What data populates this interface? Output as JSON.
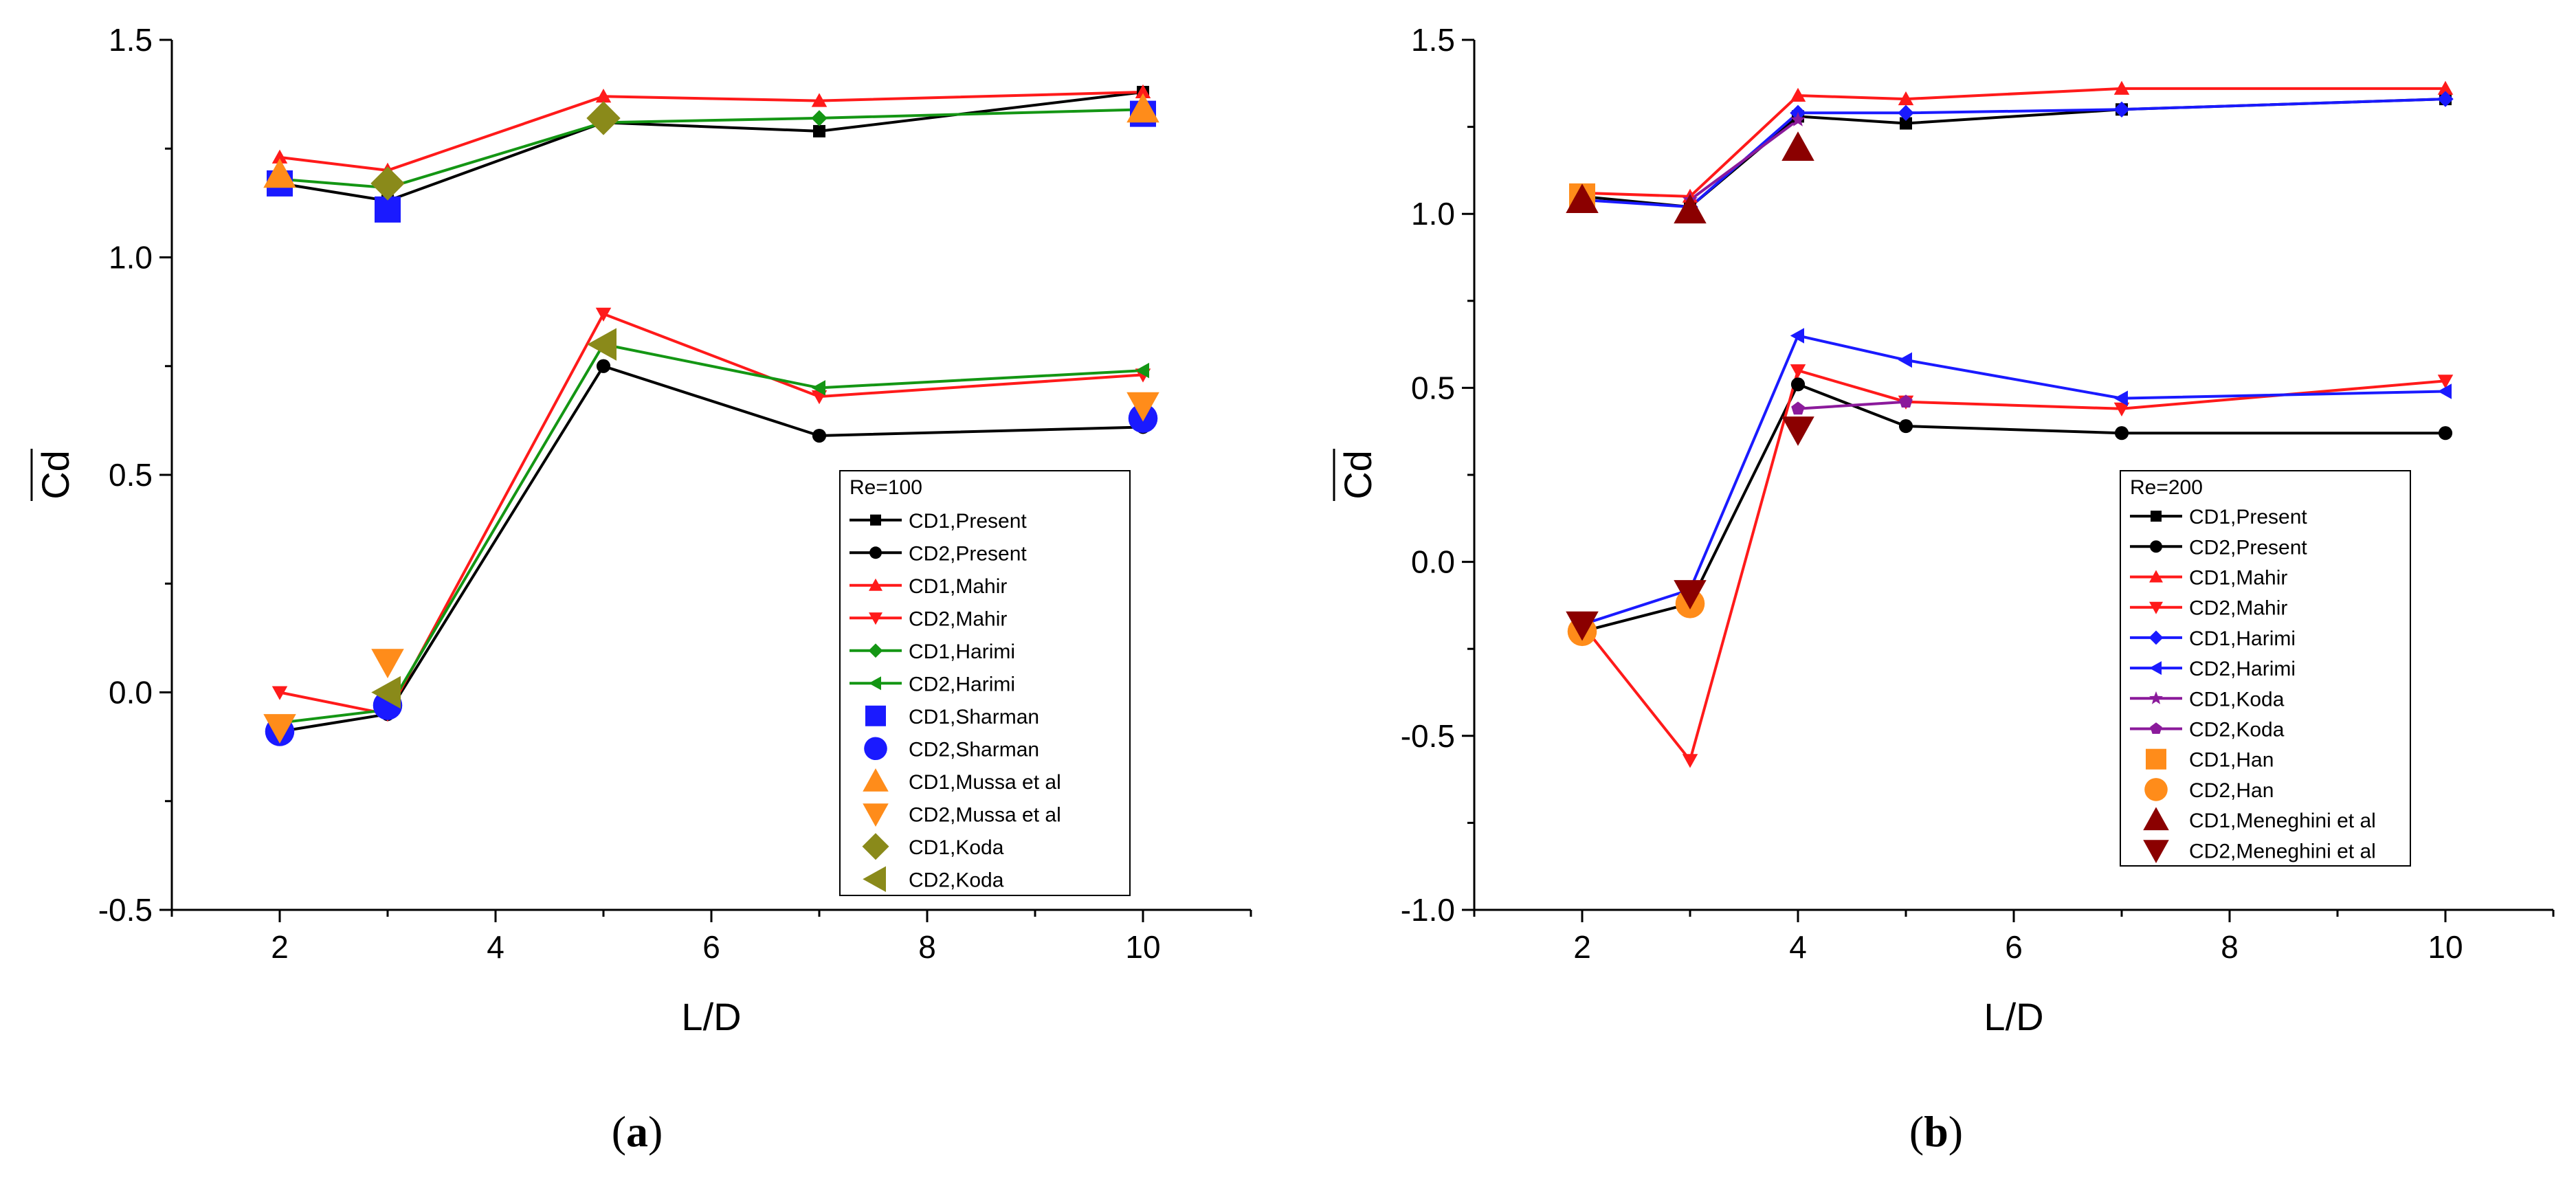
{
  "chart_data": [
    {
      "type": "line",
      "panel_label": "a",
      "xlabel": "L/D",
      "ylabel": "Cd",
      "xlim": [
        1,
        11
      ],
      "ylim": [
        -0.5,
        1.5
      ],
      "xticks": [
        2,
        4,
        6,
        8,
        10
      ],
      "yticks": [
        -0.5,
        0.0,
        0.5,
        1.0,
        1.5
      ],
      "ytick_labels": [
        "-0.5",
        "0.0",
        "0.5",
        "1.0",
        "1.5"
      ],
      "grid": false,
      "legend": {
        "title": "Re=100",
        "placement": "lower-right"
      },
      "series": [
        {
          "name": "CD1,Present",
          "color": "#000000",
          "marker": "square",
          "line": true,
          "x": [
            2,
            3,
            5,
            7,
            10
          ],
          "y": [
            1.17,
            1.13,
            1.31,
            1.29,
            1.38
          ]
        },
        {
          "name": "CD2,Present",
          "color": "#000000",
          "marker": "circle",
          "line": true,
          "x": [
            2,
            3,
            5,
            7,
            10
          ],
          "y": [
            -0.09,
            -0.05,
            0.75,
            0.59,
            0.61
          ]
        },
        {
          "name": "CD1,Mahir",
          "color": "#ff1a1a",
          "marker": "triangle-up",
          "line": true,
          "x": [
            2,
            3,
            5,
            7,
            10
          ],
          "y": [
            1.23,
            1.2,
            1.37,
            1.36,
            1.38
          ]
        },
        {
          "name": "CD2,Mahir",
          "color": "#ff1a1a",
          "marker": "triangle-down",
          "line": true,
          "x": [
            2,
            3,
            5,
            7,
            10
          ],
          "y": [
            0.0,
            -0.05,
            0.87,
            0.68,
            0.73
          ]
        },
        {
          "name": "CD1,Harimi",
          "color": "#149614",
          "marker": "diamond",
          "line": true,
          "x": [
            2,
            3,
            5,
            7,
            10
          ],
          "y": [
            1.18,
            1.16,
            1.31,
            1.32,
            1.34
          ]
        },
        {
          "name": "CD2,Harimi",
          "color": "#149614",
          "marker": "triangle-left",
          "line": true,
          "x": [
            2,
            3,
            5,
            7,
            10
          ],
          "y": [
            -0.07,
            -0.04,
            0.8,
            0.7,
            0.74
          ]
        },
        {
          "name": "CD1,Sharman",
          "color": "#1a1aff",
          "marker": "square",
          "line": false,
          "x": [
            2,
            3,
            10
          ],
          "y": [
            1.17,
            1.11,
            1.33
          ]
        },
        {
          "name": "CD2,Sharman",
          "color": "#1a1aff",
          "marker": "circle",
          "line": false,
          "x": [
            2,
            3,
            10
          ],
          "y": [
            -0.09,
            -0.03,
            0.63
          ]
        },
        {
          "name": "CD1,Mussa et al",
          "color": "#ff8c1a",
          "marker": "triangle-up",
          "line": false,
          "x": [
            2,
            10
          ],
          "y": [
            1.19,
            1.34
          ]
        },
        {
          "name": "CD2,Mussa et al",
          "color": "#ff8c1a",
          "marker": "triangle-down",
          "line": false,
          "x": [
            2,
            3,
            10
          ],
          "y": [
            -0.08,
            0.07,
            0.66
          ]
        },
        {
          "name": "CD1,Koda",
          "color": "#8a8a1a",
          "marker": "diamond",
          "line": false,
          "x": [
            3,
            5
          ],
          "y": [
            1.17,
            1.32
          ]
        },
        {
          "name": "CD2,Koda",
          "color": "#8a8a1a",
          "marker": "triangle-left",
          "line": false,
          "x": [
            3,
            5
          ],
          "y": [
            0.0,
            0.8
          ]
        }
      ]
    },
    {
      "type": "line",
      "panel_label": "b",
      "xlabel": "L/D",
      "ylabel": "Cd",
      "xlim": [
        1,
        11
      ],
      "ylim": [
        -1.0,
        1.5
      ],
      "xticks": [
        2,
        4,
        6,
        8,
        10
      ],
      "yticks": [
        -1.0,
        -0.5,
        0.0,
        0.5,
        1.0,
        1.5
      ],
      "ytick_labels": [
        "-1.0",
        "-0.5",
        "0.0",
        "0.5",
        "1.0",
        "1.5"
      ],
      "grid": false,
      "legend": {
        "title": "Re=200",
        "placement": "lower-right"
      },
      "series": [
        {
          "name": "CD1,Present",
          "color": "#000000",
          "marker": "square",
          "line": true,
          "x": [
            2,
            3,
            4,
            5,
            7,
            10
          ],
          "y": [
            1.05,
            1.02,
            1.28,
            1.26,
            1.3,
            1.33
          ]
        },
        {
          "name": "CD2,Present",
          "color": "#000000",
          "marker": "circle",
          "line": true,
          "x": [
            2,
            3,
            4,
            5,
            7,
            10
          ],
          "y": [
            -0.2,
            -0.12,
            0.51,
            0.39,
            0.37,
            0.37
          ]
        },
        {
          "name": "CD1,Mahir",
          "color": "#ff1a1a",
          "marker": "triangle-up",
          "line": true,
          "x": [
            2,
            3,
            4,
            5,
            7,
            10
          ],
          "y": [
            1.06,
            1.05,
            1.34,
            1.33,
            1.36,
            1.36
          ]
        },
        {
          "name": "CD2,Mahir",
          "color": "#ff1a1a",
          "marker": "triangle-down",
          "line": true,
          "x": [
            2,
            3,
            4,
            5,
            7,
            10
          ],
          "y": [
            -0.18,
            -0.57,
            0.55,
            0.46,
            0.44,
            0.52
          ]
        },
        {
          "name": "CD1,Harimi",
          "color": "#1a1aff",
          "marker": "diamond",
          "line": true,
          "x": [
            2,
            3,
            4,
            5,
            7,
            10
          ],
          "y": [
            1.04,
            1.02,
            1.29,
            1.29,
            1.3,
            1.33
          ]
        },
        {
          "name": "CD2,Harimi",
          "color": "#1a1aff",
          "marker": "triangle-left",
          "line": true,
          "x": [
            2,
            3,
            4,
            5,
            7,
            10
          ],
          "y": [
            -0.18,
            -0.08,
            0.65,
            0.58,
            0.47,
            0.49
          ]
        },
        {
          "name": "CD1,Koda",
          "color": "#8b1a9b",
          "marker": "star",
          "line": true,
          "x": [
            3,
            4
          ],
          "y": [
            1.04,
            1.27
          ]
        },
        {
          "name": "CD2,Koda",
          "color": "#8b1a9b",
          "marker": "pentagon",
          "line": true,
          "x": [
            4,
            5
          ],
          "y": [
            0.44,
            0.46
          ]
        },
        {
          "name": "CD1,Han",
          "color": "#ff8c1a",
          "marker": "square",
          "line": false,
          "x": [
            2
          ],
          "y": [
            1.05
          ]
        },
        {
          "name": "CD2,Han",
          "color": "#ff8c1a",
          "marker": "circle",
          "line": false,
          "x": [
            2,
            3
          ],
          "y": [
            -0.2,
            -0.12
          ]
        },
        {
          "name": "CD1,Meneghini et al",
          "color": "#8b0000",
          "marker": "triangle-up",
          "line": false,
          "x": [
            2,
            3,
            4
          ],
          "y": [
            1.04,
            1.01,
            1.19
          ]
        },
        {
          "name": "CD2,Meneghini et al",
          "color": "#8b0000",
          "marker": "triangle-down",
          "line": false,
          "x": [
            2,
            3,
            4
          ],
          "y": [
            -0.18,
            -0.09,
            0.38
          ]
        }
      ]
    }
  ]
}
